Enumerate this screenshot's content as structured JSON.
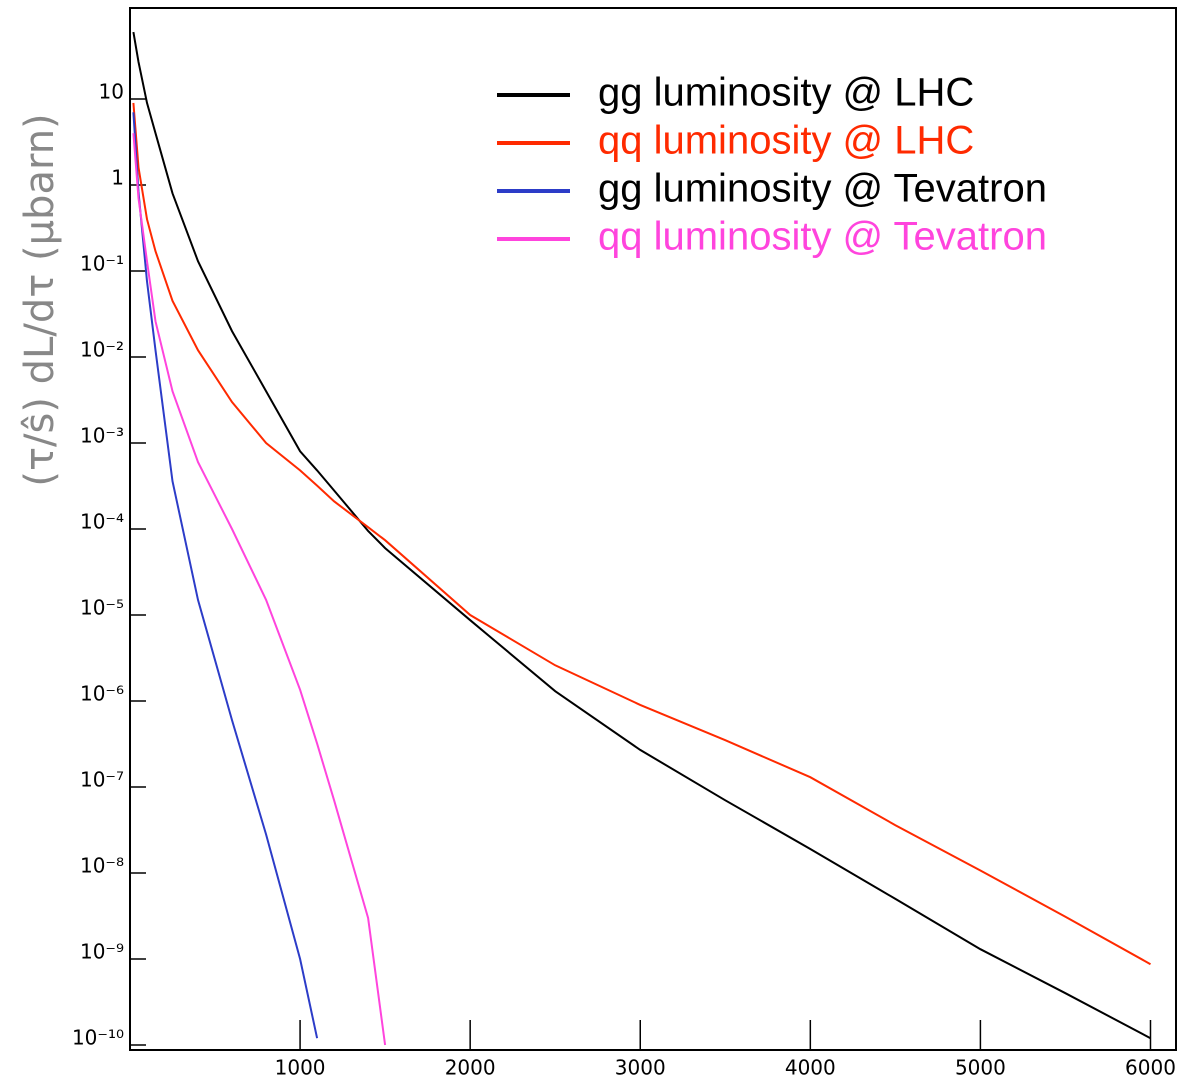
{
  "chart_data": {
    "type": "line",
    "ylabel": "(τ/ŝ) dL/dτ  (μbarn)",
    "x": [
      20,
      50,
      100,
      150,
      250,
      400,
      600,
      800,
      1000,
      1100,
      1200,
      1400,
      1500,
      2000,
      2500,
      3000,
      3500,
      4000,
      4500,
      5000,
      5500,
      6000
    ],
    "series": [
      {
        "name": "gg luminosity @ LHC",
        "color": "#000000",
        "text_color": "#000000",
        "values": [
          60,
          27,
          9,
          4,
          0.8,
          0.13,
          0.02,
          0.004,
          0.0008,
          0.00048,
          0.00028,
          9.5e-05,
          6e-05,
          8.7e-06,
          1.3e-06,
          2.7e-07,
          7e-08,
          1.9e-08,
          5e-09,
          1.3e-09,
          4e-10,
          1.2e-10
        ]
      },
      {
        "name": "qq luminosity @ LHC",
        "color": "#ff2a00",
        "text_color": "#ff2a00",
        "values": [
          9,
          1.6,
          0.4,
          0.17,
          0.045,
          0.012,
          0.003,
          0.001,
          0.00048,
          0.00032,
          0.00021,
          0.000105,
          7.4e-05,
          1e-05,
          2.6e-06,
          9e-07,
          3.5e-07,
          1.3e-07,
          3.6e-08,
          1.07e-08,
          3.1e-09,
          8.7e-10
        ]
      },
      {
        "name": "gg luminosity @ Tevatron",
        "color": "#2c3cc8",
        "text_color": "#000000",
        "values": [
          7,
          0.83,
          0.076,
          0.012,
          0.00036,
          1.5e-05,
          6e-07,
          2.8e-08,
          1e-09,
          1.2e-10,
          null,
          null,
          null,
          null,
          null,
          null,
          null,
          null,
          null,
          null,
          null,
          null
        ]
      },
      {
        "name": "qq luminosity @ Tevatron",
        "color": "#ff44dd",
        "text_color": "#ff44dd",
        "values": [
          4,
          0.7,
          0.13,
          0.026,
          0.004,
          0.0006,
          0.0001,
          1.5e-05,
          1.35e-06,
          3.2e-07,
          7e-08,
          3e-09,
          1e-10,
          null,
          null,
          null,
          null,
          null,
          null,
          null,
          null,
          null
        ]
      }
    ],
    "xlim": [
      0,
      6150
    ],
    "xticks": [
      1000,
      2000,
      3000,
      4000,
      5000,
      6000
    ],
    "ylim": [
      1e-10,
      100
    ],
    "ylog": true,
    "yticks": [
      {
        "value": 1e-10,
        "label": "10⁻¹⁰"
      },
      {
        "value": 1e-09,
        "label": "10⁻⁹"
      },
      {
        "value": 1e-08,
        "label": "10⁻⁸"
      },
      {
        "value": 1e-07,
        "label": "10⁻⁷"
      },
      {
        "value": 1e-06,
        "label": "10⁻⁶"
      },
      {
        "value": 1e-05,
        "label": "10⁻⁵"
      },
      {
        "value": 0.0001,
        "label": "10⁻⁴"
      },
      {
        "value": 0.001,
        "label": "10⁻³"
      },
      {
        "value": 0.01,
        "label": "10⁻²"
      },
      {
        "value": 0.1,
        "label": "10⁻¹"
      },
      1,
      10
    ],
    "legend": "top-right",
    "grid": false
  }
}
